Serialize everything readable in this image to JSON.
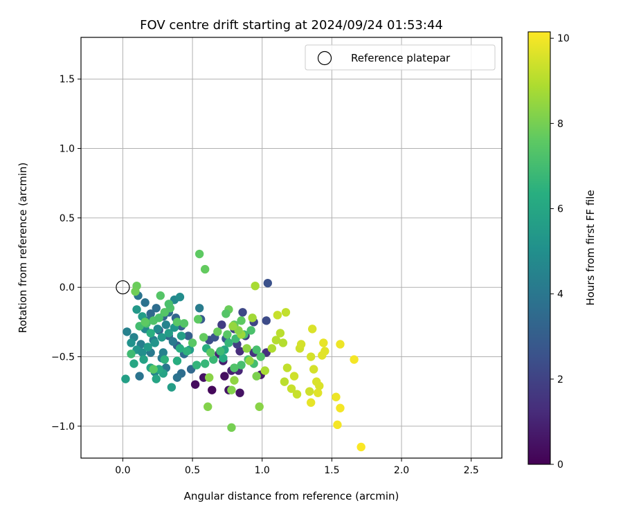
{
  "chart_data": {
    "type": "scatter",
    "title": "FOV centre drift starting at 2024/09/24 01:53:44",
    "xlabel": "Angular distance from reference (arcmin)",
    "ylabel": "Rotation from reference (arcmin)",
    "xlim": [
      -0.3,
      2.72
    ],
    "ylim": [
      -1.23,
      1.8
    ],
    "xticks": [
      0.0,
      0.5,
      1.0,
      1.5,
      2.0,
      2.5
    ],
    "xtick_labels": [
      "0.0",
      "0.5",
      "1.0",
      "1.5",
      "2.0",
      "2.5"
    ],
    "yticks": [
      -1.0,
      -0.5,
      0.0,
      0.5,
      1.0,
      1.5
    ],
    "ytick_labels": [
      "−1.0",
      "−0.5",
      "0.0",
      "0.5",
      "1.0",
      "1.5"
    ],
    "grid": true,
    "legend": {
      "placement": "top-right",
      "entries": [
        "Reference platepar"
      ]
    },
    "reference_point": {
      "x": 0.0,
      "y": 0.0
    },
    "colorbar": {
      "label": "Hours from first FF file",
      "colormap": "viridis",
      "range": [
        0,
        10.15
      ],
      "ticks": [
        0,
        2,
        4,
        6,
        8,
        10
      ],
      "tick_labels": [
        "0",
        "2",
        "4",
        "6",
        "8",
        "10"
      ]
    },
    "points": [
      [
        0.52,
        -0.7,
        0.3
      ],
      [
        0.58,
        -0.65,
        0.5
      ],
      [
        0.64,
        -0.74,
        0.2
      ],
      [
        0.73,
        -0.64,
        0.4
      ],
      [
        0.76,
        -0.74,
        0.6
      ],
      [
        0.84,
        -0.76,
        0.5
      ],
      [
        0.99,
        -0.63,
        0.7
      ],
      [
        0.72,
        -0.53,
        0.8
      ],
      [
        0.69,
        -0.48,
        1.0
      ],
      [
        0.78,
        -0.6,
        0.9
      ],
      [
        0.83,
        -0.6,
        1.1
      ],
      [
        0.84,
        -0.46,
        1.3
      ],
      [
        0.94,
        -0.47,
        1.5
      ],
      [
        1.03,
        -0.47,
        1.4
      ],
      [
        0.71,
        -0.27,
        1.8
      ],
      [
        0.8,
        -0.3,
        2.0
      ],
      [
        0.86,
        -0.18,
        2.2
      ],
      [
        0.94,
        -0.25,
        2.1
      ],
      [
        1.03,
        -0.24,
        2.3
      ],
      [
        1.04,
        0.03,
        2.5
      ],
      [
        0.62,
        -0.38,
        2.4
      ],
      [
        0.66,
        -0.36,
        2.6
      ],
      [
        0.74,
        -0.37,
        2.8
      ],
      [
        0.82,
        -0.41,
        1.9
      ],
      [
        0.88,
        -0.35,
        1.7
      ],
      [
        0.56,
        -0.23,
        2.9
      ],
      [
        0.47,
        -0.35,
        3.1
      ],
      [
        0.42,
        -0.28,
        3.0
      ],
      [
        0.38,
        -0.22,
        3.3
      ],
      [
        0.33,
        -0.18,
        3.5
      ],
      [
        0.29,
        -0.21,
        3.2
      ],
      [
        0.24,
        -0.15,
        3.6
      ],
      [
        0.2,
        -0.19,
        3.4
      ],
      [
        0.16,
        -0.11,
        3.8
      ],
      [
        0.11,
        -0.06,
        3.9
      ],
      [
        0.18,
        -0.24,
        3.7
      ],
      [
        0.26,
        -0.31,
        3.1
      ],
      [
        0.33,
        -0.35,
        3.3
      ],
      [
        0.39,
        -0.42,
        3.0
      ],
      [
        0.44,
        -0.48,
        3.5
      ],
      [
        0.49,
        -0.59,
        3.4
      ],
      [
        0.42,
        -0.62,
        3.6
      ],
      [
        0.39,
        -0.65,
        3.8
      ],
      [
        0.31,
        -0.58,
        4.0
      ],
      [
        0.28,
        -0.51,
        4.2
      ],
      [
        0.2,
        -0.47,
        4.1
      ],
      [
        0.13,
        -0.41,
        4.3
      ],
      [
        0.08,
        -0.36,
        4.5
      ],
      [
        0.03,
        -0.32,
        4.4
      ],
      [
        0.12,
        -0.64,
        3.9
      ],
      [
        0.23,
        -0.61,
        4.6
      ],
      [
        0.25,
        -0.3,
        4.8
      ],
      [
        0.37,
        -0.09,
        4.7
      ],
      [
        0.41,
        -0.07,
        4.9
      ],
      [
        0.55,
        -0.15,
        4.2
      ],
      [
        0.29,
        -0.47,
        4.4
      ],
      [
        0.16,
        -0.3,
        4.6
      ],
      [
        0.22,
        -0.38,
        4.3
      ],
      [
        0.31,
        -0.27,
        4.5
      ],
      [
        0.36,
        -0.39,
        4.1
      ],
      [
        0.06,
        -0.4,
        5.1
      ],
      [
        0.1,
        -0.45,
        5.3
      ],
      [
        0.14,
        -0.47,
        5.0
      ],
      [
        0.18,
        -0.43,
        5.5
      ],
      [
        0.23,
        -0.4,
        5.2
      ],
      [
        0.28,
        -0.36,
        5.4
      ],
      [
        0.33,
        -0.33,
        5.6
      ],
      [
        0.37,
        -0.29,
        5.3
      ],
      [
        0.42,
        -0.35,
        5.7
      ],
      [
        0.48,
        -0.45,
        5.5
      ],
      [
        0.35,
        -0.72,
        5.6
      ],
      [
        0.29,
        -0.62,
        5.8
      ],
      [
        0.24,
        -0.66,
        5.9
      ],
      [
        0.2,
        -0.58,
        6.0
      ],
      [
        0.15,
        -0.52,
        5.8
      ],
      [
        0.1,
        -0.16,
        5.4
      ],
      [
        0.14,
        -0.21,
        5.6
      ],
      [
        0.02,
        -0.66,
        5.7
      ],
      [
        0.08,
        -0.55,
        6.0
      ],
      [
        0.26,
        -0.59,
        6.1
      ],
      [
        0.72,
        -0.51,
        6.2
      ],
      [
        0.73,
        -0.45,
        6.0
      ],
      [
        0.6,
        -0.44,
        6.4
      ],
      [
        0.41,
        -0.44,
        6.3
      ],
      [
        0.2,
        -0.33,
        6.4
      ],
      [
        0.3,
        -0.52,
        6.5
      ],
      [
        0.39,
        -0.53,
        6.3
      ],
      [
        0.46,
        -0.46,
        6.5
      ],
      [
        0.53,
        -0.56,
        6.6
      ],
      [
        0.59,
        -0.55,
        6.7
      ],
      [
        0.65,
        -0.52,
        6.8
      ],
      [
        0.7,
        -0.46,
        6.9
      ],
      [
        0.76,
        -0.4,
        6.7
      ],
      [
        0.81,
        -0.37,
        6.9
      ],
      [
        0.87,
        -0.34,
        7.0
      ],
      [
        0.92,
        -0.31,
        7.2
      ],
      [
        0.96,
        -0.45,
        7.1
      ],
      [
        0.99,
        -0.5,
        7.3
      ],
      [
        0.94,
        -0.55,
        7.0
      ],
      [
        0.9,
        -0.52,
        7.2
      ],
      [
        0.85,
        -0.56,
        7.1
      ],
      [
        0.8,
        -0.58,
        7.3
      ],
      [
        0.06,
        -0.48,
        6.9
      ],
      [
        0.12,
        -0.28,
        7.0
      ],
      [
        0.17,
        -0.26,
        7.1
      ],
      [
        0.22,
        -0.24,
        7.3
      ],
      [
        0.26,
        -0.22,
        7.2
      ],
      [
        0.3,
        -0.18,
        7.4
      ],
      [
        0.34,
        -0.15,
        7.3
      ],
      [
        0.39,
        -0.25,
        7.5
      ],
      [
        0.44,
        -0.26,
        7.4
      ],
      [
        0.54,
        -0.23,
        7.6
      ],
      [
        0.5,
        -0.4,
        7.5
      ],
      [
        0.58,
        -0.36,
        7.7
      ],
      [
        0.63,
        -0.47,
        7.6
      ],
      [
        0.68,
        -0.32,
        7.8
      ],
      [
        0.75,
        -0.34,
        7.5
      ],
      [
        0.8,
        -0.27,
        7.7
      ],
      [
        0.85,
        -0.24,
        7.6
      ],
      [
        0.76,
        -0.16,
        7.8
      ],
      [
        0.74,
        -0.19,
        7.4
      ],
      [
        0.55,
        0.24,
        7.6
      ],
      [
        0.59,
        0.13,
        7.7
      ],
      [
        0.1,
        0.01,
        7.8
      ],
      [
        0.09,
        -0.03,
        7.9
      ],
      [
        0.22,
        -0.59,
        7.5
      ],
      [
        0.33,
        -0.12,
        7.2
      ],
      [
        0.27,
        -0.06,
        7.4
      ],
      [
        0.16,
        -0.25,
        7.6
      ],
      [
        0.78,
        -1.01,
        8.0
      ],
      [
        0.61,
        -0.86,
        8.2
      ],
      [
        0.98,
        -0.86,
        8.3
      ],
      [
        0.96,
        -0.64,
        8.1
      ],
      [
        0.8,
        -0.67,
        8.4
      ],
      [
        0.78,
        -0.74,
        8.2
      ],
      [
        0.62,
        -0.65,
        8.3
      ],
      [
        0.91,
        -0.53,
        8.5
      ],
      [
        0.89,
        -0.44,
        8.4
      ],
      [
        0.85,
        -0.34,
        8.6
      ],
      [
        0.83,
        -0.31,
        8.3
      ],
      [
        0.79,
        -0.28,
        8.5
      ],
      [
        0.93,
        -0.22,
        8.7
      ],
      [
        0.95,
        0.01,
        8.8
      ],
      [
        1.02,
        -0.6,
        8.8
      ],
      [
        1.07,
        -0.44,
        8.9
      ],
      [
        1.1,
        -0.38,
        9.0
      ],
      [
        1.13,
        -0.33,
        9.1
      ],
      [
        1.15,
        -0.4,
        9.0
      ],
      [
        1.17,
        -0.18,
        9.2
      ],
      [
        1.11,
        -0.2,
        9.3
      ],
      [
        1.16,
        -0.68,
        9.1
      ],
      [
        1.18,
        -0.58,
        9.2
      ],
      [
        1.21,
        -0.73,
        9.3
      ],
      [
        1.23,
        -0.64,
        9.4
      ],
      [
        1.25,
        -0.77,
        9.3
      ],
      [
        1.27,
        -0.44,
        9.4
      ],
      [
        1.28,
        -0.41,
        9.5
      ],
      [
        1.34,
        -0.75,
        9.4
      ],
      [
        1.35,
        -0.5,
        9.5
      ],
      [
        1.36,
        -0.3,
        9.6
      ],
      [
        1.37,
        -0.59,
        9.5
      ],
      [
        1.39,
        -0.68,
        9.6
      ],
      [
        1.4,
        -0.76,
        9.7
      ],
      [
        1.41,
        -0.71,
        9.6
      ],
      [
        1.43,
        -0.49,
        9.7
      ],
      [
        1.44,
        -0.4,
        9.8
      ],
      [
        1.45,
        -0.46,
        9.7
      ],
      [
        1.35,
        -0.83,
        9.8
      ],
      [
        1.53,
        -0.79,
        9.9
      ],
      [
        1.54,
        -0.99,
        10.0
      ],
      [
        1.56,
        -0.87,
        10.0
      ],
      [
        1.56,
        -0.41,
        9.9
      ],
      [
        1.66,
        -0.52,
        10.0
      ],
      [
        1.71,
        -1.15,
        10.1
      ]
    ]
  }
}
